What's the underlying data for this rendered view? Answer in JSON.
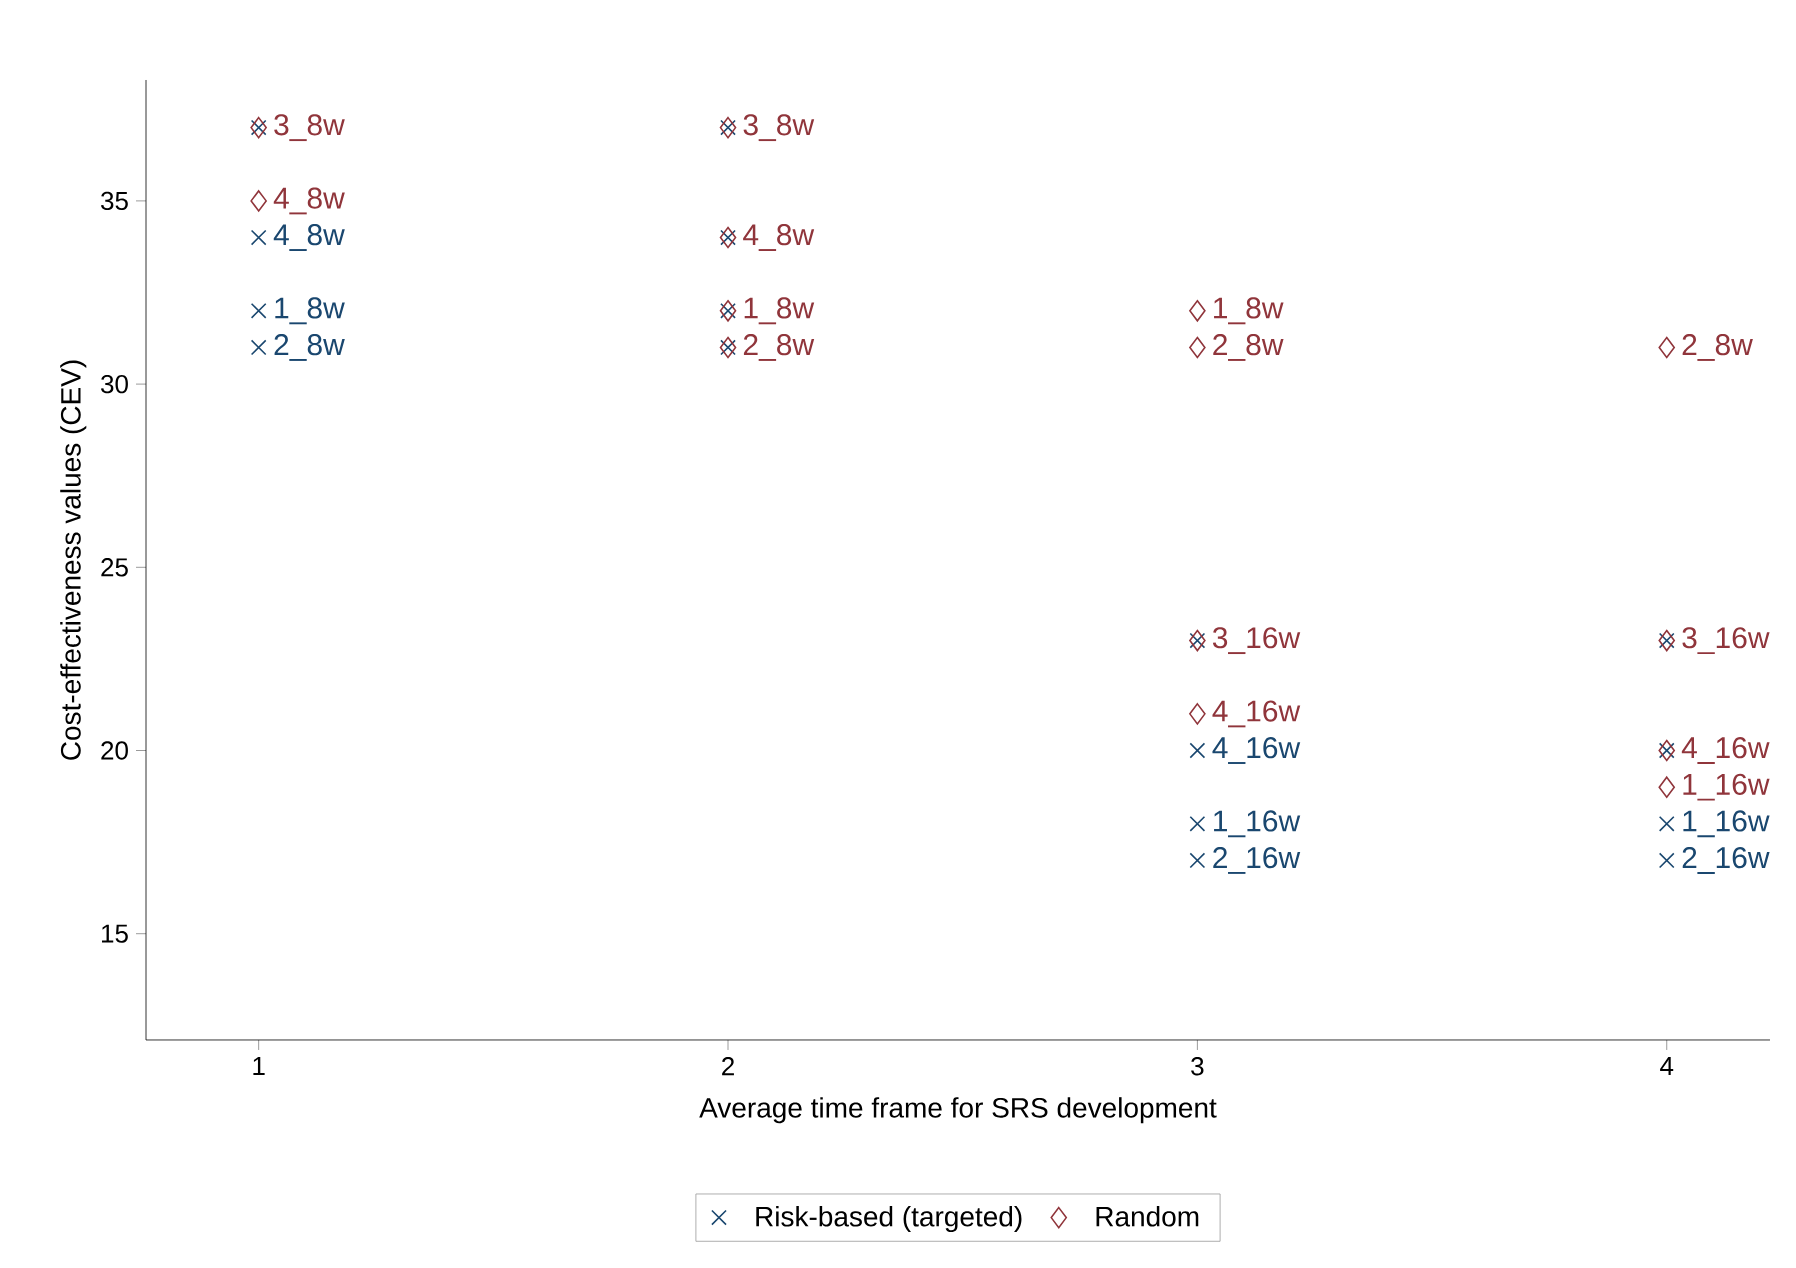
{
  "chart_data": {
    "type": "scatter",
    "xlabel": "Average time frame for SRS development",
    "ylabel": "Cost-effectiveness values (CEV)",
    "xlim": [
      0.76,
      4.22
    ],
    "ylim": [
      12.1,
      38.3
    ],
    "xticks": [
      1,
      2,
      3,
      4
    ],
    "yticks": [
      15,
      20,
      25,
      30,
      35
    ],
    "legend": "bottom",
    "series": [
      {
        "name": "Risk-based (targeted)",
        "color": "#1a476f",
        "marker": "cross",
        "x": [
          1,
          1,
          1,
          1,
          2,
          2,
          2,
          2,
          3,
          3,
          3,
          3,
          4,
          4,
          4,
          4
        ],
        "values": [
          37,
          34,
          32,
          31,
          37,
          34,
          32,
          31,
          23,
          20,
          18,
          17,
          23,
          20,
          18,
          17
        ],
        "value_labels": [
          null,
          "4_8w",
          "1_8w",
          "2_8w",
          null,
          null,
          null,
          null,
          null,
          "4_16w",
          "1_16w",
          "2_16w",
          null,
          null,
          "1_16w",
          "2_16w"
        ]
      },
      {
        "name": "Random",
        "color": "#90353b",
        "marker": "diamond",
        "x": [
          1,
          1,
          2,
          2,
          2,
          2,
          3,
          3,
          3,
          3,
          4,
          4,
          4,
          4
        ],
        "values": [
          37,
          35,
          37,
          34,
          32,
          31,
          32,
          31,
          23,
          21,
          31,
          23,
          20,
          19
        ],
        "value_labels": [
          "3_8w",
          "4_8w",
          "3_8w",
          "4_8w",
          "1_8w",
          "2_8w",
          "1_8w",
          "2_8w",
          "3_16w",
          "4_16w",
          "2_8w",
          "3_16w",
          "4_16w",
          "1_16w"
        ]
      }
    ]
  }
}
